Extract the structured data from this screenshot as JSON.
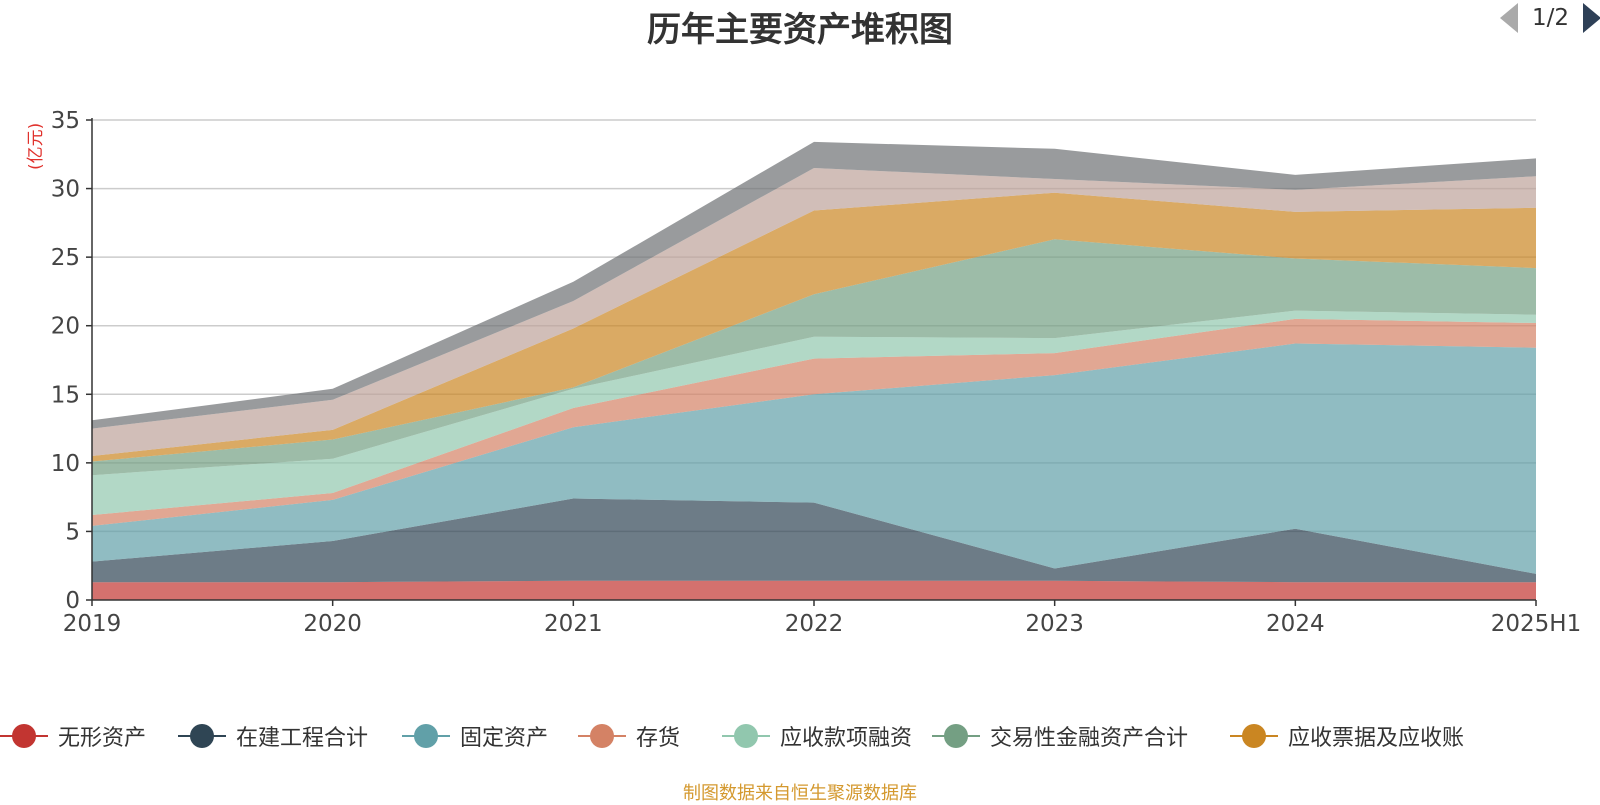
{
  "title": "历年主要资产堆积图",
  "unit": "(亿元)",
  "source": "制图数据来自恒生聚源数据库",
  "legend_pager": "1/2",
  "chart_data": {
    "type": "area",
    "stacked": true,
    "title": "历年主要资产堆积图",
    "ylabel": "(亿元)",
    "xlabel": "",
    "categories": [
      "2019",
      "2020",
      "2021",
      "2022",
      "2023",
      "2024",
      "2025H1"
    ],
    "ylim": [
      0,
      35
    ],
    "yticks": [
      0,
      5,
      10,
      15,
      20,
      25,
      30,
      35
    ],
    "grid": true,
    "legend_position": "bottom",
    "series": [
      {
        "name": "无形资产",
        "color": "#c23531",
        "values": [
          1.3,
          1.3,
          1.4,
          1.4,
          1.4,
          1.3,
          1.3
        ]
      },
      {
        "name": "在建工程合计",
        "color": "#2f4554",
        "values": [
          1.5,
          3.0,
          6.0,
          5.7,
          0.9,
          3.9,
          0.6
        ]
      },
      {
        "name": "固定资产",
        "color": "#61a0a8",
        "values": [
          2.6,
          3.0,
          5.2,
          7.9,
          14.1,
          13.5,
          16.5
        ]
      },
      {
        "name": "存货",
        "color": "#d48265",
        "values": [
          0.8,
          0.5,
          1.4,
          2.6,
          1.6,
          1.8,
          1.8
        ]
      },
      {
        "name": "应收款项融资",
        "color": "#91c7ae",
        "values": [
          2.9,
          2.5,
          1.4,
          1.6,
          1.1,
          0.6,
          0.6
        ]
      },
      {
        "name": "交易性金融资产合计",
        "color": "#749f83",
        "values": [
          1.0,
          1.4,
          0.1,
          3.1,
          7.2,
          3.8,
          3.4
        ]
      },
      {
        "name": "应收票据及应收账",
        "color": "#ca8622",
        "values": [
          0.4,
          0.7,
          4.3,
          6.1,
          3.4,
          3.4,
          4.4
        ]
      },
      {
        "name": "",
        "color": "#bda29a",
        "values": [
          2.0,
          2.2,
          2.0,
          3.1,
          1.0,
          1.6,
          2.3
        ]
      },
      {
        "name": "",
        "color": "#6e7074",
        "values": [
          0.6,
          0.8,
          1.4,
          1.9,
          2.2,
          1.1,
          1.3
        ]
      }
    ]
  }
}
